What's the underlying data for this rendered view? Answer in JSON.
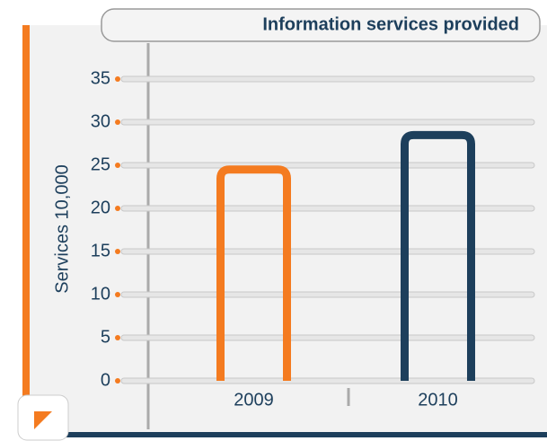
{
  "chart_data": {
    "type": "bar",
    "title": "Information services provided",
    "y_label": "Services 10,000",
    "categories": [
      "2009",
      "2010"
    ],
    "series": [
      {
        "name": "Services",
        "colors": [
          "#f47b20",
          "#1d3f5c"
        ],
        "values": [
          24.5,
          28.5
        ]
      }
    ],
    "ylim": [
      0,
      35
    ],
    "yticks": [
      0,
      5,
      10,
      15,
      20,
      25,
      30,
      35
    ],
    "grid": true
  }
}
